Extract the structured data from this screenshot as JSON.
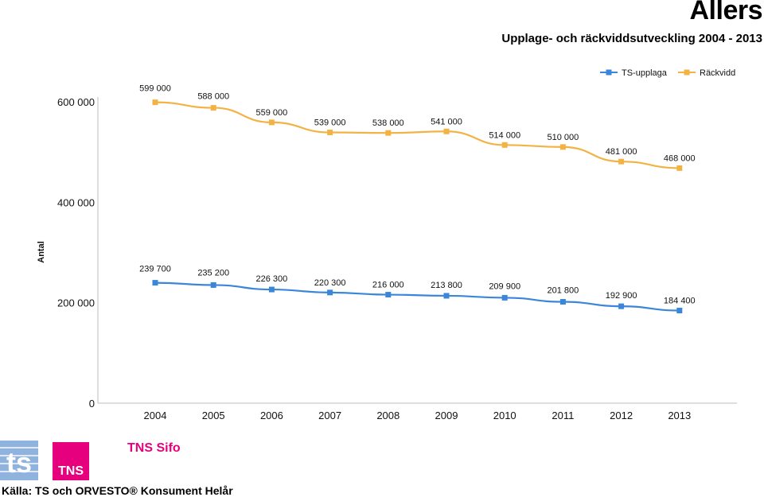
{
  "header": {
    "brand": "Allers",
    "subtitle": "Upplage- och räckviddsutveckling 2004 - 2013"
  },
  "footer": {
    "source": "Källa: TS och ORVESTO® Konsument Helår",
    "logos": [
      {
        "name": "ts-logo",
        "text": "ts"
      },
      {
        "name": "tns-logo",
        "text": "TNS"
      },
      {
        "name": "tns-sifo-logo",
        "text": "TNS Sifo"
      }
    ]
  },
  "colors": {
    "ts_series": "#3a86d8",
    "reach_series": "#f2b344",
    "tns_magenta": "#e6007e",
    "ts_blue": "#8fb3dc",
    "sifo_text": "#e6007e"
  },
  "chart_data": {
    "type": "line",
    "x": [
      "2004",
      "2005",
      "2006",
      "2007",
      "2008",
      "2009",
      "2010",
      "2011",
      "2012",
      "2013"
    ],
    "ylabel": "Antal",
    "ylim": [
      0,
      600000
    ],
    "yticks": [
      0,
      200000,
      400000,
      600000
    ],
    "ytick_labels": [
      "0",
      "200 000",
      "400 000",
      "600 000"
    ],
    "legend_position": "top-right",
    "series": [
      {
        "name": "TS-upplaga",
        "color": "#3a86d8",
        "values": [
          239700,
          235200,
          226300,
          220300,
          216000,
          213800,
          209900,
          201800,
          192900,
          184400
        ],
        "labels": [
          "239 700",
          "235 200",
          "226 300",
          "220 300",
          "216 000",
          "213 800",
          "209 900",
          "201 800",
          "192 900",
          "184 400"
        ]
      },
      {
        "name": "Räckvidd",
        "color": "#f2b344",
        "values": [
          599000,
          588000,
          559000,
          539000,
          538000,
          541000,
          514000,
          510000,
          481000,
          468000
        ],
        "labels": [
          "599 000",
          "588 000",
          "559 000",
          "539 000",
          "538 000",
          "541 000",
          "514 000",
          "510 000",
          "481 000",
          "468 000"
        ]
      }
    ]
  }
}
